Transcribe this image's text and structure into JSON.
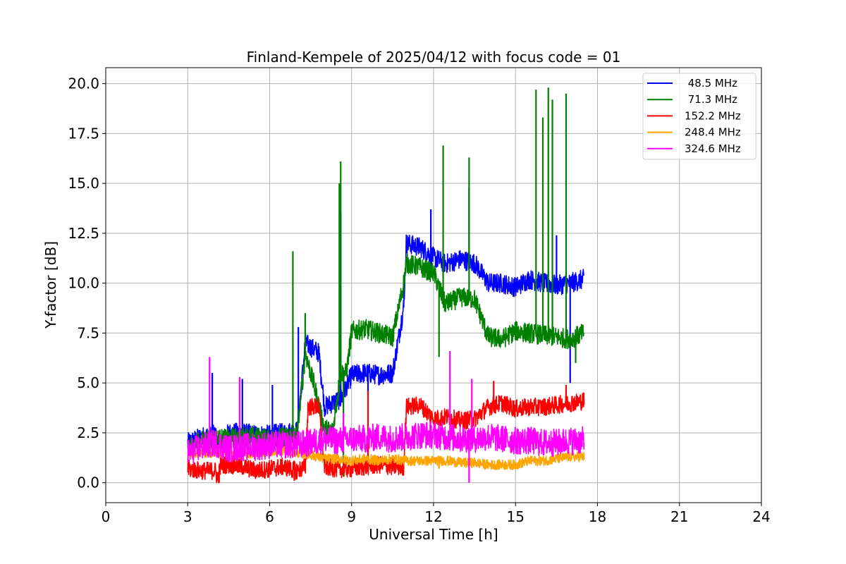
{
  "chart_data": {
    "type": "line",
    "title": "Finland-Kempele of 2025/04/12 with focus code = 01",
    "xlabel": "Universal Time [h]",
    "ylabel": "Y-factor [dB]",
    "xlim": [
      0,
      24
    ],
    "ylim": [
      -1.0,
      20.8
    ],
    "xticks": [
      0,
      3,
      6,
      9,
      12,
      15,
      18,
      21,
      24
    ],
    "xtick_labels": [
      "0",
      "3",
      "6",
      "9",
      "12",
      "15",
      "18",
      "21",
      "24"
    ],
    "yticks": [
      0,
      2.5,
      5,
      7.5,
      10,
      12.5,
      15,
      17.5,
      20
    ],
    "ytick_labels": [
      "0.0",
      "2.5",
      "5.0",
      "7.5",
      "10.0",
      "12.5",
      "15.0",
      "17.5",
      "20.0"
    ],
    "grid": true,
    "legend_position": "top-right",
    "series": [
      {
        "name": " 48.5 MHz",
        "color": "#0000ff",
        "band": 0.5,
        "x": [
          3.0,
          3.5,
          4.0,
          4.1,
          4.5,
          5.0,
          5.5,
          6.0,
          6.5,
          7.0,
          7.3,
          7.5,
          7.8,
          8.0,
          8.3,
          8.6,
          9.0,
          9.5,
          10.0,
          10.5,
          10.9,
          11.0,
          11.5,
          12.0,
          12.4,
          12.5,
          13.0,
          13.5,
          14.0,
          14.5,
          15.0,
          15.5,
          16.0,
          16.5,
          17.0,
          17.5
        ],
        "y": [
          2.0,
          2.3,
          2.4,
          1.8,
          2.5,
          2.5,
          2.4,
          2.4,
          2.5,
          2.6,
          7.0,
          6.8,
          6.5,
          3.8,
          4.0,
          4.2,
          5.4,
          5.5,
          5.4,
          5.5,
          8.8,
          12.0,
          11.8,
          11.3,
          11.0,
          11.0,
          11.2,
          11.0,
          10.0,
          10.0,
          9.8,
          10.2,
          10.0,
          9.9,
          10.0,
          10.2
        ],
        "spikes": [
          [
            3.9,
            5.5
          ],
          [
            5.0,
            5.2
          ],
          [
            6.1,
            4.9
          ],
          [
            7.05,
            7.8
          ],
          [
            8.6,
            13.6
          ],
          [
            9.6,
            4.5
          ],
          [
            11.9,
            13.7
          ],
          [
            13.3,
            14.8
          ],
          [
            16.5,
            12.4
          ],
          [
            17.0,
            5.0
          ]
        ]
      },
      {
        "name": " 71.3 MHz",
        "color": "#008000",
        "band": 0.5,
        "x": [
          3.0,
          3.5,
          4.0,
          4.5,
          5.0,
          5.5,
          6.0,
          6.5,
          7.0,
          7.3,
          7.6,
          8.0,
          8.3,
          8.6,
          8.8,
          9.0,
          9.5,
          10.0,
          10.5,
          10.9,
          11.0,
          11.5,
          12.0,
          12.4,
          12.5,
          13.0,
          13.5,
          14.0,
          14.5,
          15.0,
          15.5,
          16.0,
          16.5,
          17.0,
          17.5
        ],
        "y": [
          1.8,
          2.1,
          2.2,
          2.2,
          2.3,
          2.3,
          2.2,
          2.3,
          2.4,
          6.5,
          5.0,
          2.7,
          2.6,
          5.5,
          5.5,
          7.6,
          7.7,
          7.5,
          7.3,
          10.0,
          11.0,
          10.8,
          10.5,
          9.0,
          9.0,
          9.3,
          9.2,
          7.3,
          7.2,
          7.6,
          7.5,
          7.4,
          7.3,
          7.2,
          7.5
        ],
        "spikes": [
          [
            6.85,
            11.6
          ],
          [
            7.3,
            8.5
          ],
          [
            8.55,
            15.0
          ],
          [
            8.6,
            16.1
          ],
          [
            8.7,
            0.3
          ],
          [
            12.35,
            16.9
          ],
          [
            12.2,
            6.3
          ],
          [
            13.3,
            16.3
          ],
          [
            15.75,
            19.7
          ],
          [
            16.0,
            18.3
          ],
          [
            16.2,
            19.8
          ],
          [
            16.35,
            19.2
          ],
          [
            16.85,
            19.5
          ],
          [
            17.2,
            6.0
          ]
        ]
      },
      {
        "name": "152.2 MHz",
        "color": "#ff0000",
        "band": 0.45,
        "x": [
          3.0,
          3.5,
          4.0,
          4.1,
          4.2,
          4.5,
          5.0,
          5.5,
          6.0,
          6.5,
          7.0,
          7.3,
          7.4,
          7.8,
          8.0,
          8.5,
          9.0,
          9.5,
          10.0,
          10.5,
          10.9,
          11.0,
          11.5,
          12.0,
          12.5,
          13.0,
          13.5,
          14.0,
          14.5,
          15.0,
          15.5,
          16.0,
          16.5,
          17.0,
          17.5
        ],
        "y": [
          0.7,
          0.6,
          0.6,
          0.2,
          0.9,
          0.9,
          0.8,
          0.6,
          0.7,
          0.8,
          0.6,
          0.8,
          3.8,
          3.8,
          0.8,
          0.7,
          0.7,
          0.8,
          0.9,
          0.8,
          0.8,
          3.8,
          3.9,
          3.2,
          3.3,
          3.1,
          3.2,
          3.8,
          4.0,
          3.7,
          3.8,
          3.8,
          3.9,
          4.0,
          4.1
        ],
        "spikes": [
          [
            4.15,
            0.0
          ],
          [
            6.9,
            0.1
          ],
          [
            9.6,
            4.6
          ],
          [
            14.2,
            5.1
          ],
          [
            16.85,
            4.9
          ]
        ]
      },
      {
        "name": "248.4 MHz",
        "color": "#ffa500",
        "band": 0.25,
        "x": [
          3.0,
          3.5,
          4.0,
          4.5,
          5.0,
          5.5,
          6.0,
          6.5,
          7.0,
          7.5,
          8.0,
          8.5,
          9.0,
          9.5,
          10.0,
          10.5,
          11.0,
          11.5,
          12.0,
          12.5,
          13.0,
          13.5,
          14.0,
          14.5,
          15.0,
          15.5,
          16.0,
          16.5,
          17.0,
          17.5
        ],
        "y": [
          1.5,
          1.5,
          1.5,
          1.5,
          1.4,
          1.5,
          1.6,
          1.6,
          1.5,
          1.4,
          1.2,
          1.2,
          1.1,
          1.2,
          1.1,
          1.2,
          1.1,
          1.1,
          1.1,
          1.1,
          1.0,
          1.0,
          0.9,
          0.9,
          0.9,
          1.1,
          1.1,
          1.2,
          1.3,
          1.3
        ],
        "spikes": [
          [
            12.2,
            0.7
          ],
          [
            14.8,
            0.7
          ]
        ]
      },
      {
        "name": "324.6 MHz",
        "color": "#ff00ff",
        "band": 0.7,
        "x": [
          3.0,
          3.5,
          4.0,
          4.5,
          5.0,
          5.5,
          6.0,
          6.5,
          7.0,
          7.5,
          8.0,
          8.5,
          9.0,
          9.5,
          10.0,
          10.5,
          11.0,
          11.5,
          12.0,
          12.5,
          13.0,
          13.5,
          14.0,
          14.5,
          15.0,
          15.5,
          16.0,
          16.5,
          17.0,
          17.5
        ],
        "y": [
          1.5,
          1.8,
          2.0,
          1.7,
          1.8,
          1.8,
          1.9,
          1.9,
          1.9,
          2.0,
          2.2,
          2.1,
          2.2,
          2.2,
          2.3,
          2.2,
          2.3,
          2.4,
          2.4,
          2.3,
          2.2,
          2.2,
          2.3,
          2.2,
          2.1,
          2.1,
          2.0,
          2.0,
          2.1,
          2.1
        ],
        "spikes": [
          [
            3.8,
            6.3
          ],
          [
            4.9,
            5.3
          ],
          [
            8.7,
            3.5
          ],
          [
            12.6,
            6.6
          ],
          [
            13.3,
            0.0
          ],
          [
            13.4,
            5.2
          ]
        ]
      }
    ]
  }
}
